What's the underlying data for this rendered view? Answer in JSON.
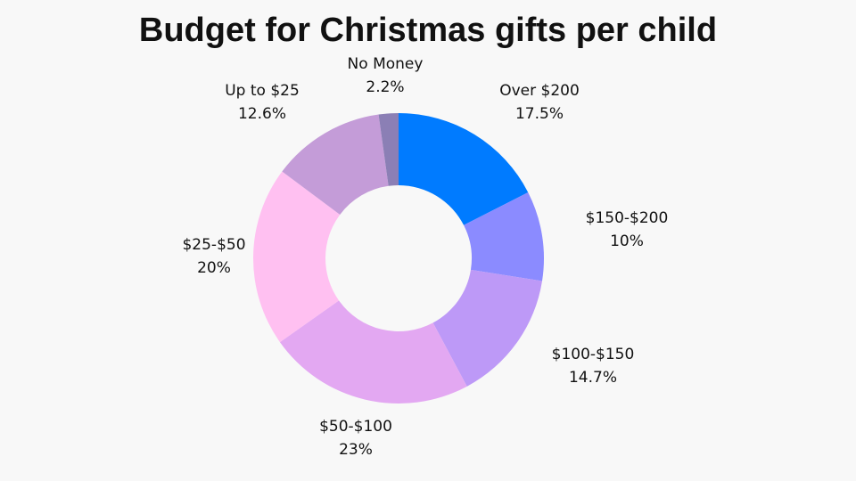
{
  "chart_data": {
    "type": "donut",
    "title": "Budget for Christmas gifts per child",
    "categories": [
      "Over $200",
      "$150-$200",
      "$100-$150",
      "$50-$100",
      "$25-$50",
      "Up to $25",
      "No Money"
    ],
    "values": [
      17.5,
      10,
      14.7,
      23,
      20,
      12.6,
      2.2
    ],
    "value_labels": [
      "17.5%",
      "10%",
      "14.7%",
      "23%",
      "20%",
      "12.6%",
      "2.2%"
    ],
    "colors": [
      "#007bff",
      "#8b8bff",
      "#bd99f7",
      "#e3a8f2",
      "#ffc0f1",
      "#c49cd8",
      "#8b7fb5"
    ]
  }
}
